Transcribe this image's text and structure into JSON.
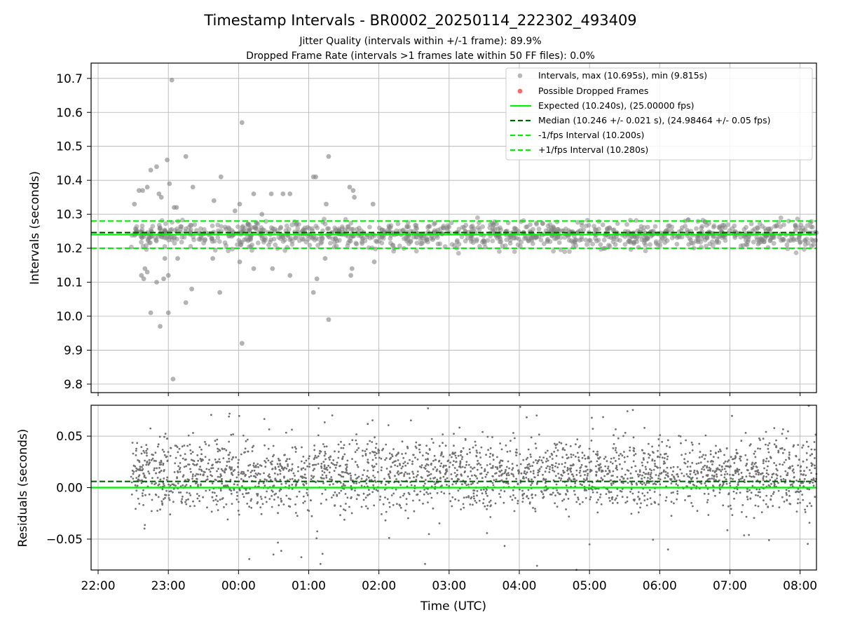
{
  "title": "Timestamp Intervals - BR0002_20250114_222302_493409",
  "subtitle_1": "Jitter Quality (intervals within +/-1 frame): 89.9%",
  "subtitle_2": "Dropped Frame Rate (intervals >1 frames late within 50 FF files): 0.0%",
  "colors": {
    "points": "#808080",
    "dropped": "#ff4d4d",
    "expected": "#00ee00",
    "median": "#006400",
    "fps_interval": "#00ee00",
    "grid": "#b0b0b0"
  },
  "chart_data": [
    {
      "type": "scatter",
      "name": "intervals",
      "ylabel": "Intervals (seconds)",
      "ylim": [
        9.775,
        10.745
      ],
      "yticks": [
        "9.8",
        "9.9",
        "10.0",
        "10.1",
        "10.2",
        "10.3",
        "10.4",
        "10.5",
        "10.6",
        "10.7"
      ],
      "x_range_utc": [
        "21:54",
        "08:14"
      ],
      "grid": true,
      "legend_position": "upper-right",
      "legend": [
        "Intervals, max (10.695s), min (9.815s)",
        "Possible Dropped Frames",
        "Expected (10.240s), (25.00000 fps)",
        "Median (10.246 +/- 0.021 s), (24.98464 +/- 0.05 fps)",
        "-1/fps Interval (10.200s)",
        "+1/fps Interval (10.280s)"
      ],
      "reference_lines": {
        "expected": 10.24,
        "median": 10.246,
        "minus_1fps": 10.2,
        "plus_1fps": 10.28
      },
      "max_interval": 10.695,
      "min_interval": 9.815,
      "dense_band": [
        10.18,
        10.3
      ],
      "outliers": [
        {
          "t": "22:31",
          "y": 10.33
        },
        {
          "t": "22:33",
          "y": 10.25
        },
        {
          "t": "22:35",
          "y": 10.37
        },
        {
          "t": "22:37",
          "y": 10.12
        },
        {
          "t": "22:38",
          "y": 10.37
        },
        {
          "t": "22:39",
          "y": 10.11
        },
        {
          "t": "22:40",
          "y": 10.14
        },
        {
          "t": "22:42",
          "y": 10.38
        },
        {
          "t": "22:42",
          "y": 10.13
        },
        {
          "t": "22:45",
          "y": 10.43
        },
        {
          "t": "22:45",
          "y": 10.01
        },
        {
          "t": "22:50",
          "y": 10.1
        },
        {
          "t": "22:50",
          "y": 10.44
        },
        {
          "t": "22:52",
          "y": 10.36
        },
        {
          "t": "22:53",
          "y": 9.97
        },
        {
          "t": "22:54",
          "y": 10.35
        },
        {
          "t": "22:56",
          "y": 10.11
        },
        {
          "t": "22:57",
          "y": 10.17
        },
        {
          "t": "22:59",
          "y": 10.46
        },
        {
          "t": "23:00",
          "y": 10.12
        },
        {
          "t": "23:00",
          "y": 10.01
        },
        {
          "t": "23:01",
          "y": 10.39
        },
        {
          "t": "23:03",
          "y": 10.695
        },
        {
          "t": "23:04",
          "y": 9.815
        },
        {
          "t": "23:05",
          "y": 10.32
        },
        {
          "t": "23:07",
          "y": 10.32
        },
        {
          "t": "23:08",
          "y": 10.17
        },
        {
          "t": "23:15",
          "y": 10.04
        },
        {
          "t": "23:15",
          "y": 10.47
        },
        {
          "t": "23:20",
          "y": 10.08
        },
        {
          "t": "23:21",
          "y": 10.38
        },
        {
          "t": "23:38",
          "y": 10.17
        },
        {
          "t": "23:39",
          "y": 10.34
        },
        {
          "t": "23:44",
          "y": 10.07
        },
        {
          "t": "23:45",
          "y": 10.41
        },
        {
          "t": "23:57",
          "y": 10.31
        },
        {
          "t": "24:01",
          "y": 10.33
        },
        {
          "t": "24:01",
          "y": 10.16
        },
        {
          "t": "24:03",
          "y": 10.57
        },
        {
          "t": "24:03",
          "y": 9.92
        },
        {
          "t": "24:13",
          "y": 10.14
        },
        {
          "t": "24:13",
          "y": 10.36
        },
        {
          "t": "24:20",
          "y": 10.3
        },
        {
          "t": "24:28",
          "y": 10.36
        },
        {
          "t": "24:29",
          "y": 10.14
        },
        {
          "t": "24:38",
          "y": 10.36
        },
        {
          "t": "24:44",
          "y": 10.36
        },
        {
          "t": "24:44",
          "y": 10.12
        },
        {
          "t": "25:04",
          "y": 10.41
        },
        {
          "t": "25:04",
          "y": 10.07
        },
        {
          "t": "25:06",
          "y": 10.41
        },
        {
          "t": "25:07",
          "y": 10.11
        },
        {
          "t": "25:14",
          "y": 10.17
        },
        {
          "t": "25:15",
          "y": 10.33
        },
        {
          "t": "25:17",
          "y": 10.47
        },
        {
          "t": "25:17",
          "y": 9.99
        },
        {
          "t": "25:35",
          "y": 10.38
        },
        {
          "t": "25:36",
          "y": 10.12
        },
        {
          "t": "25:37",
          "y": 10.14
        },
        {
          "t": "25:38",
          "y": 10.37
        },
        {
          "t": "25:39",
          "y": 10.35
        },
        {
          "t": "25:55",
          "y": 10.33
        },
        {
          "t": "25:56",
          "y": 10.16
        }
      ]
    },
    {
      "type": "scatter",
      "name": "residuals",
      "ylabel": "Residuals (seconds)",
      "xlabel": "Time (UTC)",
      "ylim": [
        -0.08,
        0.08
      ],
      "yticks": [
        "0.05",
        "0.00",
        "−0.05"
      ],
      "xticks": [
        "22:00",
        "23:00",
        "00:00",
        "01:00",
        "02:00",
        "03:00",
        "04:00",
        "05:00",
        "06:00",
        "07:00",
        "08:00"
      ],
      "grid": true,
      "reference_lines": {
        "zero": 0.0,
        "median_offset": 0.006
      },
      "dense_band": [
        -0.025,
        0.05
      ]
    }
  ]
}
